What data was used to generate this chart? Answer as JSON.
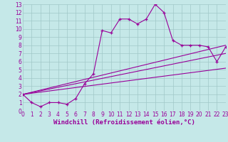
{
  "background_color": "#c5e8e8",
  "grid_color": "#a0c8c8",
  "line_color": "#990099",
  "xlim": [
    0,
    23
  ],
  "ylim": [
    0,
    13
  ],
  "xtick_labels": [
    "0",
    "1",
    "2",
    "3",
    "4",
    "5",
    "6",
    "7",
    "8",
    "9",
    "10",
    "11",
    "12",
    "13",
    "14",
    "15",
    "16",
    "17",
    "18",
    "19",
    "20",
    "21",
    "22",
    "23"
  ],
  "xtick_vals": [
    0,
    1,
    2,
    3,
    4,
    5,
    6,
    7,
    8,
    9,
    10,
    11,
    12,
    13,
    14,
    15,
    16,
    17,
    18,
    19,
    20,
    21,
    22,
    23
  ],
  "ytick_vals": [
    0,
    1,
    2,
    3,
    4,
    5,
    6,
    7,
    8,
    9,
    10,
    11,
    12,
    13
  ],
  "xlabel": "Windchill (Refroidissement éolien,°C)",
  "main_x": [
    0,
    1,
    2,
    3,
    4,
    5,
    6,
    7,
    8,
    9,
    10,
    11,
    12,
    13,
    14,
    15,
    16,
    17,
    18,
    19,
    20,
    21,
    22,
    23
  ],
  "main_y": [
    2,
    1,
    0.5,
    1,
    1,
    0.8,
    1.5,
    3.3,
    4.5,
    9.8,
    9.5,
    11.2,
    11.2,
    10.6,
    11.2,
    13,
    12,
    8.6,
    8,
    8,
    8,
    7.8,
    6,
    7.8
  ],
  "line1_x": [
    0,
    23
  ],
  "line1_y": [
    2,
    8
  ],
  "line2_x": [
    0,
    23
  ],
  "line2_y": [
    2,
    7
  ],
  "line3_x": [
    0,
    23
  ],
  "line3_y": [
    2,
    5.2
  ],
  "tick_fontsize": 5.5,
  "label_fontsize": 6.5
}
